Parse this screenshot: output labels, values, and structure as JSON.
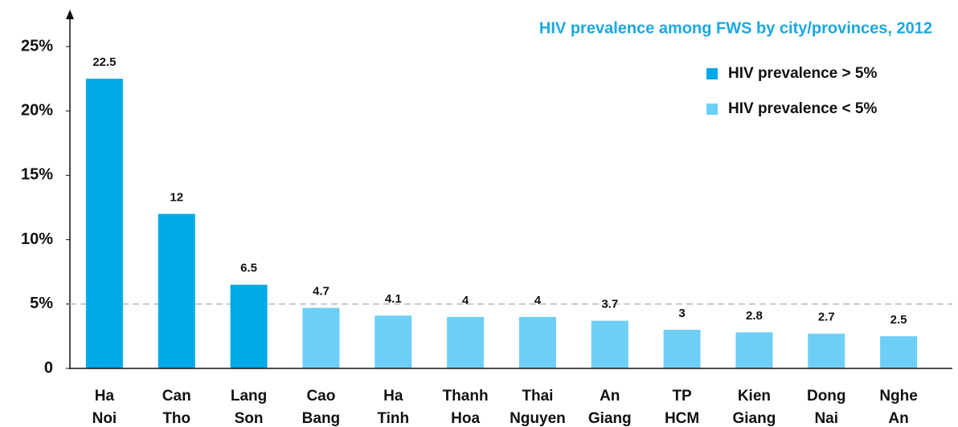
{
  "chart_data": {
    "type": "bar",
    "title": "HIV prevalence among FWS by city/provinces, 2012",
    "categories": [
      "Ha Noi",
      "Can Tho",
      "Lang Son",
      "Cao Bang",
      "Ha Tinh",
      "Thanh Hoa",
      "Thai Nguyen",
      "An Giang",
      "TP HCM",
      "Kien Giang",
      "Dong Nai",
      "Nghe An"
    ],
    "values": [
      22.5,
      12,
      6.5,
      4.7,
      4.1,
      4,
      4,
      3.7,
      3,
      2.8,
      2.7,
      2.5
    ],
    "colors": [
      "#00a9e8",
      "#00a9e8",
      "#00a9e8",
      "#6dcff6",
      "#6dcff6",
      "#6dcff6",
      "#6dcff6",
      "#6dcff6",
      "#6dcff6",
      "#6dcff6",
      "#6dcff6",
      "#6dcff6"
    ],
    "legend": [
      {
        "label": "HIV prevalence > 5%",
        "color": "#00a9e8"
      },
      {
        "label": "HIV prevalence < 5%",
        "color": "#6dcff6"
      }
    ],
    "reference_line": 5,
    "ylim": [
      0,
      25
    ],
    "yticks": [
      0,
      {
        "value": 5,
        "label": "5%"
      },
      {
        "value": 10,
        "label": "10%"
      },
      {
        "value": 15,
        "label": "15%"
      },
      {
        "value": 20,
        "label": "20%"
      },
      {
        "value": 25,
        "label": "25%"
      }
    ]
  }
}
